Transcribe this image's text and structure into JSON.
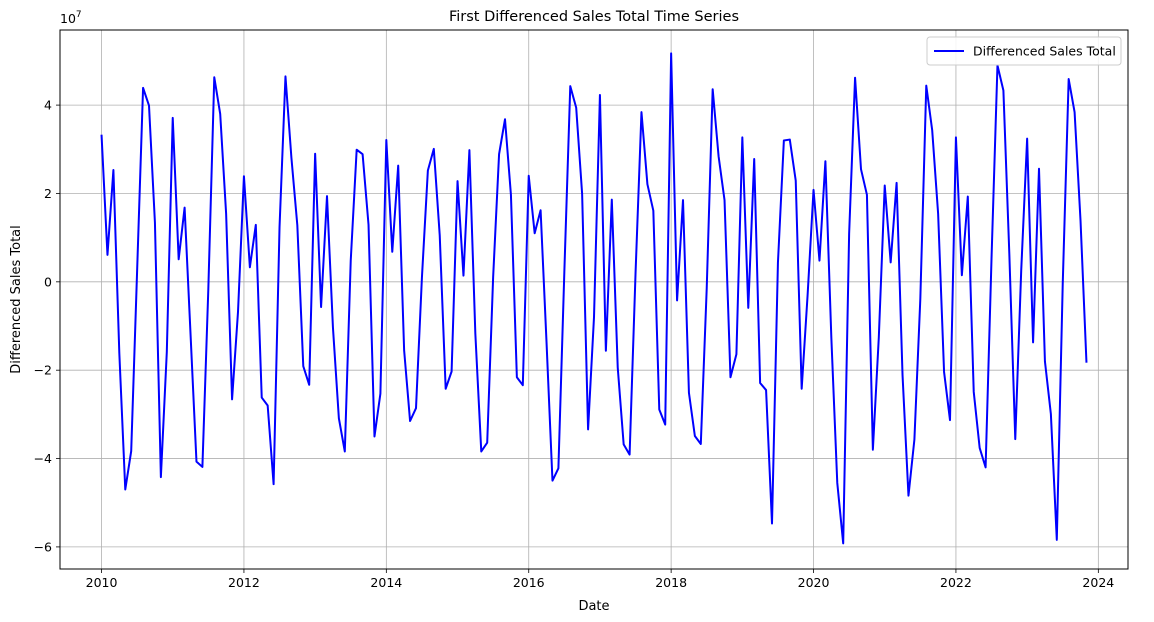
{
  "chart_data": {
    "type": "line",
    "title": "First Differenced Sales Total Time Series",
    "xlabel": "Date",
    "ylabel": "Differenced Sales Total",
    "y_multiplier_label": "1e7",
    "xlim": [
      "2009-06-01",
      "2024-06-01"
    ],
    "ylim": [
      -65000000,
      57000000
    ],
    "x_ticks": [
      "2010",
      "2012",
      "2014",
      "2016",
      "2018",
      "2020",
      "2022",
      "2024"
    ],
    "y_ticks": [
      -60000000,
      -40000000,
      -20000000,
      0,
      20000000,
      40000000
    ],
    "y_tick_labels": [
      "−6",
      "−4",
      "−2",
      "0",
      "2",
      "4"
    ],
    "grid": true,
    "legend_position": "top-right",
    "series": [
      {
        "name": "Differenced Sales Total",
        "color": "#0000ff",
        "x": [
          "2010-01",
          "2010-02",
          "2010-03",
          "2010-04",
          "2010-05",
          "2010-06",
          "2010-07",
          "2010-08",
          "2010-09",
          "2010-10",
          "2010-11",
          "2010-12",
          "2011-01",
          "2011-02",
          "2011-03",
          "2011-04",
          "2011-05",
          "2011-06",
          "2011-07",
          "2011-08",
          "2011-09",
          "2011-10",
          "2011-11",
          "2011-12",
          "2012-01",
          "2012-02",
          "2012-03",
          "2012-04",
          "2012-05",
          "2012-06",
          "2012-07",
          "2012-08",
          "2012-09",
          "2012-10",
          "2012-11",
          "2012-12",
          "2013-01",
          "2013-02",
          "2013-03",
          "2013-04",
          "2013-05",
          "2013-06",
          "2013-07",
          "2013-08",
          "2013-09",
          "2013-10",
          "2013-11",
          "2013-12",
          "2014-01",
          "2014-02",
          "2014-03",
          "2014-04",
          "2014-05",
          "2014-06",
          "2014-07",
          "2014-08",
          "2014-09",
          "2014-10",
          "2014-11",
          "2014-12",
          "2015-01",
          "2015-02",
          "2015-03",
          "2015-04",
          "2015-05",
          "2015-06",
          "2015-07",
          "2015-08",
          "2015-09",
          "2015-10",
          "2015-11",
          "2015-12",
          "2016-01",
          "2016-02",
          "2016-03",
          "2016-04",
          "2016-05",
          "2016-06",
          "2016-07",
          "2016-08",
          "2016-09",
          "2016-10",
          "2016-11",
          "2016-12",
          "2017-01",
          "2017-02",
          "2017-03",
          "2017-04",
          "2017-05",
          "2017-06",
          "2017-07",
          "2017-08",
          "2017-09",
          "2017-10",
          "2017-11",
          "2017-12",
          "2018-01",
          "2018-02",
          "2018-03",
          "2018-04",
          "2018-05",
          "2018-06",
          "2018-07",
          "2018-08",
          "2018-09",
          "2018-10",
          "2018-11",
          "2018-12",
          "2019-01",
          "2019-02",
          "2019-03",
          "2019-04",
          "2019-05",
          "2019-06",
          "2019-07",
          "2019-08",
          "2019-09",
          "2019-10",
          "2019-11",
          "2019-12",
          "2020-01",
          "2020-02",
          "2020-03",
          "2020-04",
          "2020-05",
          "2020-06",
          "2020-07",
          "2020-08",
          "2020-09",
          "2020-10",
          "2020-11",
          "2020-12",
          "2021-01",
          "2021-02",
          "2021-03",
          "2021-04",
          "2021-05",
          "2021-06",
          "2021-07",
          "2021-08",
          "2021-09",
          "2021-10",
          "2021-11",
          "2021-12",
          "2022-01",
          "2022-02",
          "2022-03",
          "2022-04",
          "2022-05",
          "2022-06",
          "2022-07",
          "2022-08",
          "2022-09",
          "2022-10",
          "2022-11",
          "2022-12",
          "2023-01",
          "2023-02",
          "2023-03",
          "2023-04",
          "2023-05",
          "2023-06",
          "2023-07",
          "2023-08",
          "2023-09",
          "2023-10",
          "2023-11"
        ],
        "values": [
          33300000,
          6100000,
          25300000,
          -16200000,
          -47000000,
          -38300000,
          2600000,
          43900000,
          39900000,
          13400000,
          -44200000,
          -15900000,
          37100000,
          5100000,
          16800000,
          -11800000,
          -40700000,
          -41900000,
          -1600000,
          46300000,
          38000000,
          15400000,
          -26600000,
          -6800000,
          23900000,
          3300000,
          12900000,
          -26200000,
          -28000000,
          -45800000,
          12400000,
          46500000,
          28100000,
          12800000,
          -19100000,
          -23300000,
          29000000,
          -5700000,
          19400000,
          -10300000,
          -30900000,
          -38400000,
          4800000,
          29900000,
          28900000,
          12900000,
          -35000000,
          -25300000,
          32100000,
          6800000,
          26300000,
          -15500000,
          -31500000,
          -28600000,
          1000000,
          25200000,
          30100000,
          10500000,
          -24200000,
          -20300000,
          22800000,
          1400000,
          29800000,
          -11700000,
          -38400000,
          -36400000,
          1000000,
          28900000,
          36800000,
          19700000,
          -21600000,
          -23400000,
          24000000,
          11000000,
          16200000,
          -13700000,
          -45000000,
          -42200000,
          2200000,
          44300000,
          39400000,
          19900000,
          -33400000,
          -8000000,
          42300000,
          -15600000,
          18600000,
          -19400000,
          -36800000,
          -39100000,
          1900000,
          38400000,
          22100000,
          16100000,
          -28900000,
          -32300000,
          51700000,
          -4200000,
          18500000,
          -25100000,
          -34900000,
          -36700000,
          -1400000,
          43600000,
          28400000,
          18500000,
          -21600000,
          -16400000,
          32700000,
          -5900000,
          27800000,
          -22900000,
          -24500000,
          -54700000,
          4300000,
          32000000,
          32200000,
          22900000,
          -24200000,
          -3000000,
          20800000,
          4800000,
          27300000,
          -12600000,
          -45500000,
          -59200000,
          10900000,
          46200000,
          25500000,
          19700000,
          -38000000,
          -12600000,
          21800000,
          4400000,
          22400000,
          -21100000,
          -48400000,
          -35700000,
          -3800000,
          44400000,
          34300000,
          15400000,
          -20400000,
          -31300000,
          32700000,
          1500000,
          19300000,
          -24900000,
          -37600000,
          -42000000,
          5400000,
          49000000,
          43300000,
          6300000,
          -35600000,
          2500000,
          32400000,
          -13700000,
          25600000,
          -18000000,
          -29900000,
          -58400000,
          -500000,
          45900000,
          38400000,
          13800000,
          -18300000
        ]
      }
    ]
  }
}
